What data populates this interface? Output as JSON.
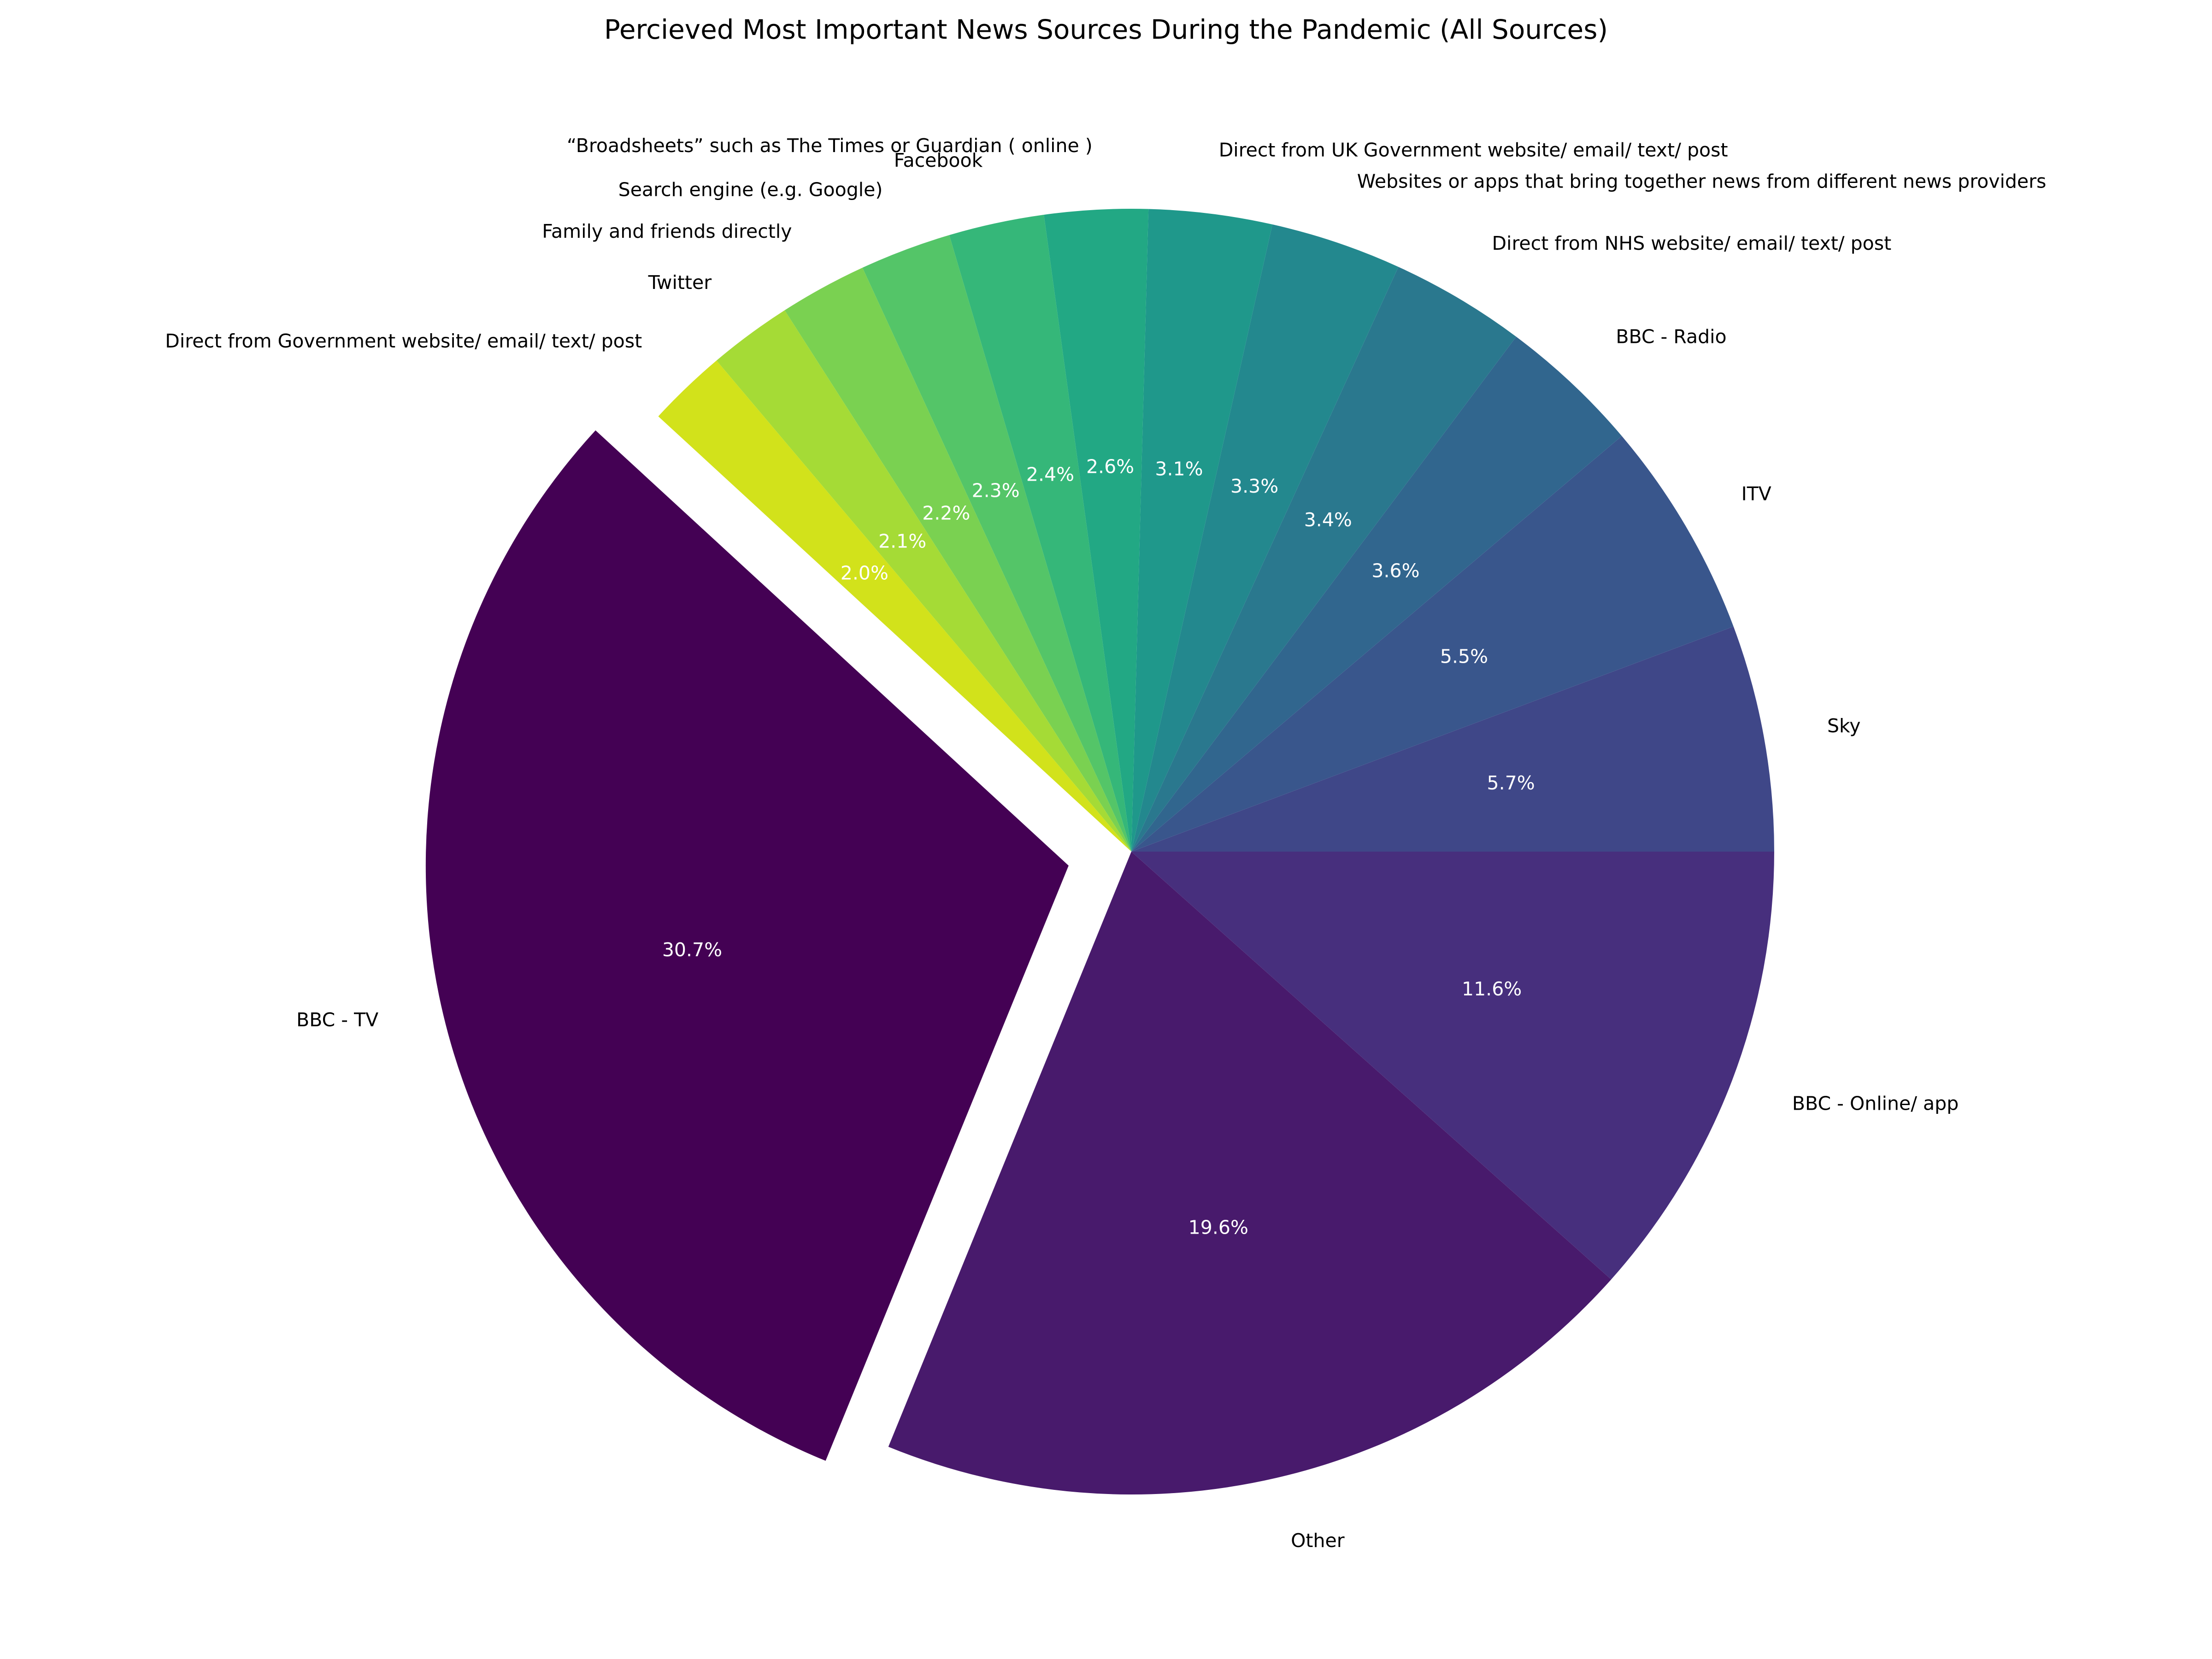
{
  "chart_data": {
    "type": "pie",
    "title": "Percieved Most Important News Sources During the Pandemic (All Sources)",
    "start_angle": 0,
    "direction": "counterclockwise",
    "exploded": [
      "BBC - TV"
    ],
    "slices": [
      {
        "label": "Sky",
        "value": 5.7,
        "pct_label": "5.7%",
        "color": "#3f4788"
      },
      {
        "label": "ITV",
        "value": 5.5,
        "pct_label": "5.5%",
        "color": "#39568c"
      },
      {
        "label": "BBC - Radio",
        "value": 3.6,
        "pct_label": "3.6%",
        "color": "#31668e"
      },
      {
        "label": "Direct from NHS website/ email/ text/ post",
        "value": 3.4,
        "pct_label": "3.4%",
        "color": "#2a788e"
      },
      {
        "label": "Websites or apps that bring together news from different news providers",
        "value": 3.3,
        "pct_label": "3.3%",
        "color": "#23888e"
      },
      {
        "label": "Direct from UK Government website/ email/ text/ post",
        "value": 3.1,
        "pct_label": "3.1%",
        "color": "#1f988b"
      },
      {
        "label": "“Broadsheets” such as The Times or Guardian ( online )",
        "value": 2.6,
        "pct_label": "2.6%",
        "color": "#22a884"
      },
      {
        "label": "Facebook",
        "value": 2.4,
        "pct_label": "2.4%",
        "color": "#35b779"
      },
      {
        "label": "Search engine (e.g. Google)",
        "value": 2.3,
        "pct_label": "2.3%",
        "color": "#54c568"
      },
      {
        "label": "Family and friends directly",
        "value": 2.2,
        "pct_label": "2.2%",
        "color": "#7ad151"
      },
      {
        "label": "Twitter",
        "value": 2.1,
        "pct_label": "2.1%",
        "color": "#a5db36"
      },
      {
        "label": "Direct from Government website/ email/ text/ post",
        "value": 2.0,
        "pct_label": "2.0%",
        "color": "#d2e21b"
      },
      {
        "label": "BBC - TV",
        "value": 30.7,
        "pct_label": "30.7%",
        "color": "#440154"
      },
      {
        "label": "Other",
        "value": 19.6,
        "pct_label": "19.6%",
        "color": "#481a6c"
      },
      {
        "label": "BBC - Online/ app",
        "value": 11.6,
        "pct_label": "11.6%",
        "color": "#472f7d"
      }
    ]
  }
}
